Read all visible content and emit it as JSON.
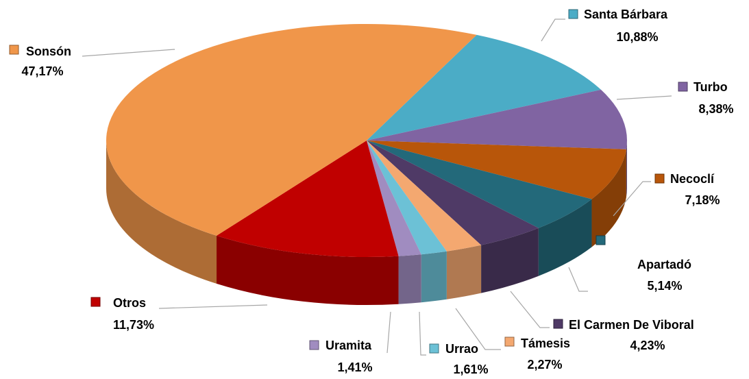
{
  "chart_data": {
    "type": "pie",
    "categories": [
      "Santa Bárbara",
      "Turbo",
      "Necoclí",
      "Apartadó",
      "El Carmen De Viboral",
      "Támesis",
      "Urrao",
      "Uramita",
      "Otros",
      "Sonsón"
    ],
    "values": [
      10.88,
      8.38,
      7.18,
      5.14,
      4.23,
      2.27,
      1.61,
      1.41,
      11.73,
      47.17
    ],
    "value_labels": [
      "10,88%",
      "8,38%",
      "7,18%",
      "5,14%",
      "4,23%",
      "2,27%",
      "1,61%",
      "1,41%",
      "11,73%",
      "47,17%"
    ],
    "colors": [
      "#4BACC6",
      "#8064A2",
      "#B8560A",
      "#23697A",
      "#4F3A66",
      "#F4A870",
      "#6CC1D6",
      "#A08CC0",
      "#C00000",
      "#F0964A"
    ]
  }
}
